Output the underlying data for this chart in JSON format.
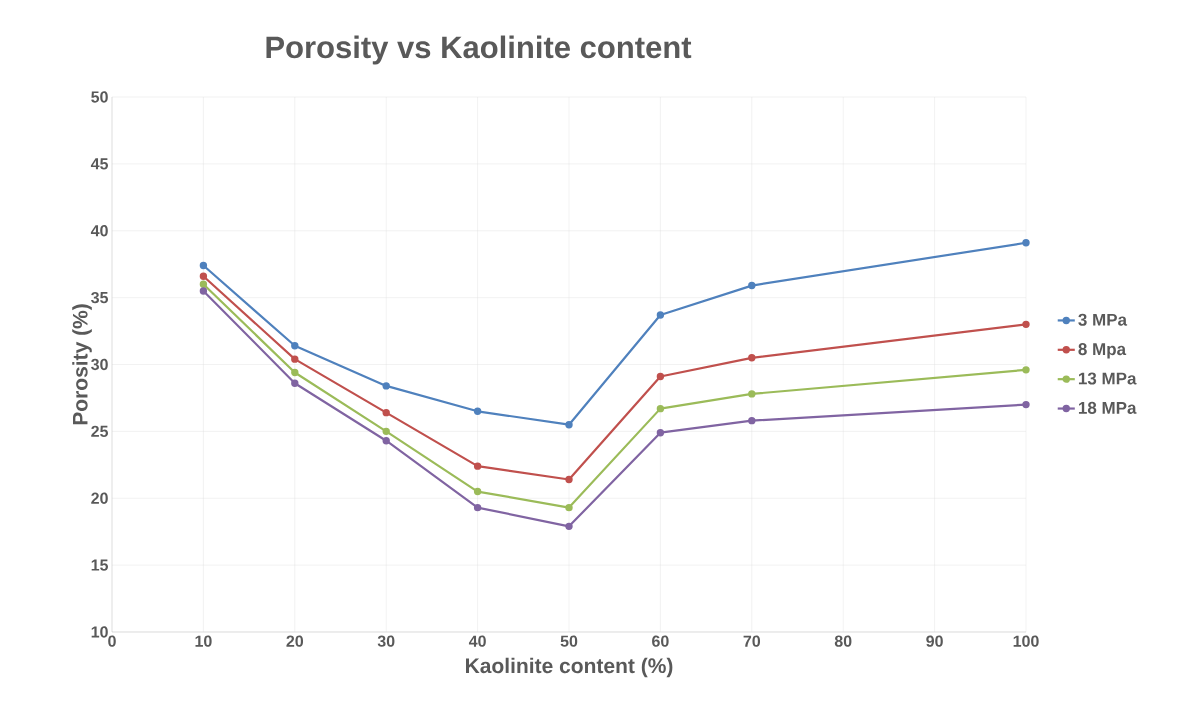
{
  "chart_data": {
    "type": "line",
    "title": "Porosity vs Kaolinite content",
    "xlabel": "Kaolinite content (%)",
    "ylabel": "Porosity (%)",
    "x": [
      10,
      20,
      30,
      40,
      50,
      60,
      70,
      100
    ],
    "series": [
      {
        "name": "3 MPa",
        "color": "#4f81bd",
        "values": [
          37.4,
          31.4,
          28.4,
          26.5,
          25.5,
          33.7,
          35.9,
          39.1
        ]
      },
      {
        "name": "8 Mpa",
        "color": "#c0504d",
        "values": [
          36.6,
          30.4,
          26.4,
          22.4,
          21.4,
          29.1,
          30.5,
          33.0
        ]
      },
      {
        "name": "13 MPa",
        "color": "#9bbb59",
        "values": [
          36.0,
          29.4,
          25.0,
          20.5,
          19.3,
          26.7,
          27.8,
          29.6
        ]
      },
      {
        "name": "18 MPa",
        "color": "#8064a2",
        "values": [
          35.5,
          28.6,
          24.3,
          19.3,
          17.9,
          24.9,
          25.8,
          27.0
        ]
      }
    ],
    "xlim": [
      0,
      100
    ],
    "xticks": [
      0,
      10,
      20,
      30,
      40,
      50,
      60,
      70,
      80,
      90,
      100
    ],
    "ylim": [
      10,
      50
    ],
    "yticks": [
      10,
      15,
      20,
      25,
      30,
      35,
      40,
      45,
      50
    ],
    "grid": true,
    "legend": "right",
    "marker": "circle",
    "line_style": "solid"
  }
}
